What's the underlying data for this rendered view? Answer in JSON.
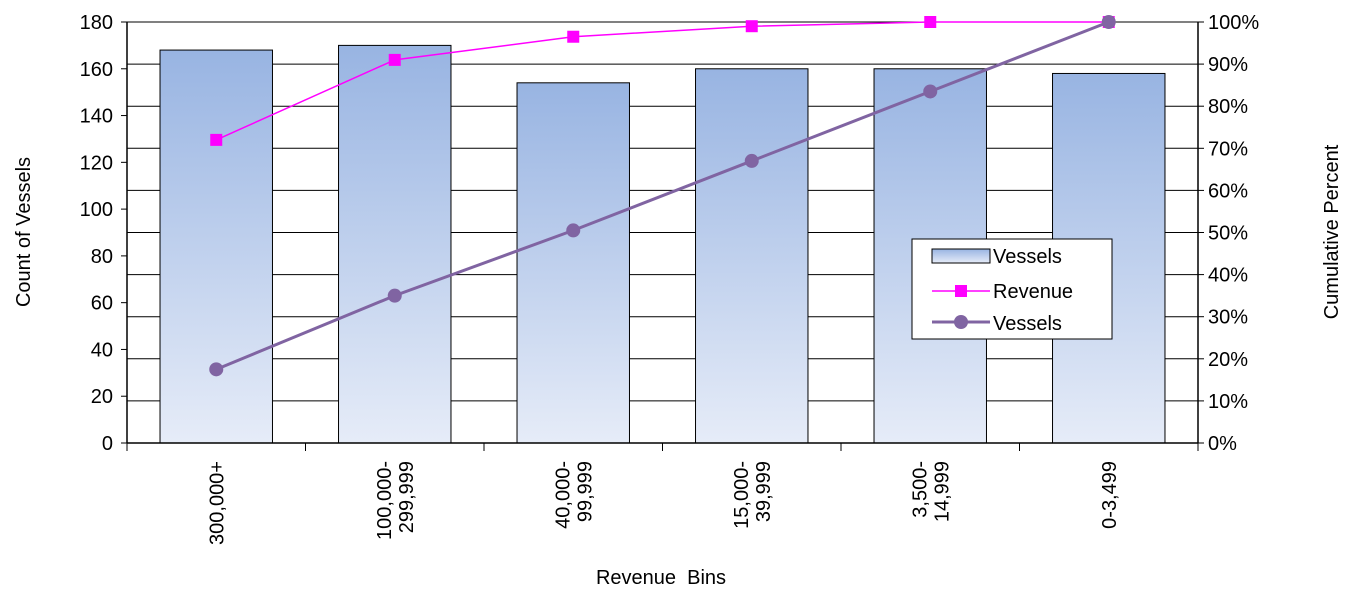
{
  "chart_data": {
    "type": "bar",
    "categories": [
      [
        "300,000+"
      ],
      [
        "100,000-",
        "299,999"
      ],
      [
        "40,000-",
        "99,999"
      ],
      [
        "15,000-",
        "39,999"
      ],
      [
        "3,500-",
        "14,999"
      ],
      [
        "0-3,499"
      ]
    ],
    "xlabel": "Revenue  Bins",
    "ylabel": "Count of Vessels",
    "y2label": "Cumulative  Percent",
    "ylim": [
      0,
      180
    ],
    "y_ticks": [
      0,
      20,
      40,
      60,
      80,
      100,
      120,
      140,
      160,
      180
    ],
    "y2lim": [
      0,
      1
    ],
    "y2_ticks": [
      "0%",
      "10%",
      "20%",
      "30%",
      "40%",
      "50%",
      "60%",
      "70%",
      "80%",
      "90%",
      "100%"
    ],
    "grid": "horizontal",
    "legend_position": "right-middle",
    "bars": {
      "name": "Vessels",
      "axis": "left",
      "values": [
        168,
        170,
        154,
        160,
        160,
        158
      ],
      "fill_top": "#98b4e2",
      "fill_bottom": "#e6ecf8",
      "stroke": "#000000"
    },
    "lines": [
      {
        "name": "Revenue",
        "axis": "right",
        "values": [
          0.72,
          0.91,
          0.965,
          0.99,
          1.0,
          1.0
        ],
        "color": "#ff00ff",
        "marker": "square"
      },
      {
        "name": "Vessels",
        "axis": "right",
        "values": [
          0.175,
          0.35,
          0.505,
          0.67,
          0.835,
          1.0
        ],
        "color": "#8064a2",
        "marker": "circle"
      }
    ]
  }
}
